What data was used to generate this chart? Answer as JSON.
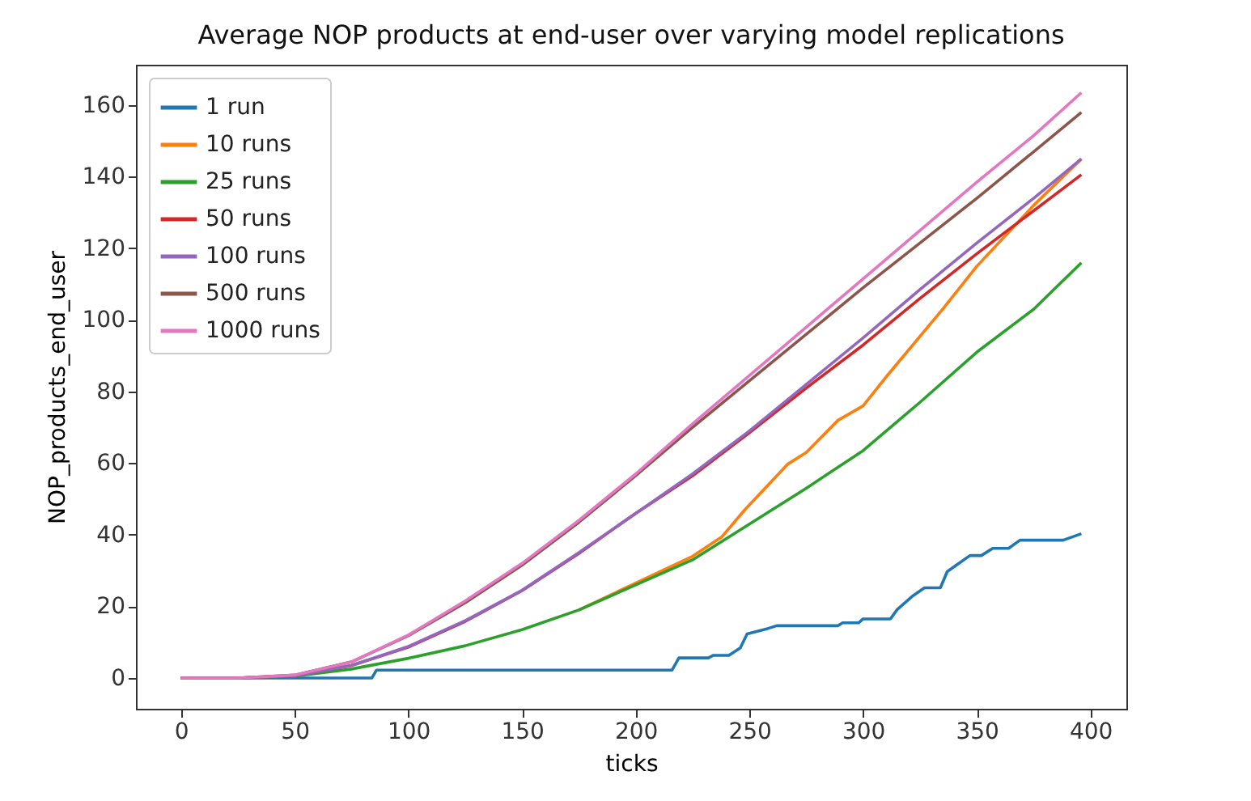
{
  "chart_data": {
    "type": "line",
    "title": "Average NOP products at end-user over varying model replications",
    "xlabel": "ticks",
    "ylabel": "NOP_products_end_user",
    "xlim": [
      -19.8,
      415.8
    ],
    "ylim": [
      -8.6,
      171.3
    ],
    "xticks": [
      0,
      50,
      100,
      150,
      200,
      250,
      300,
      350,
      400
    ],
    "yticks": [
      0,
      20,
      40,
      60,
      80,
      100,
      120,
      140,
      160
    ],
    "grid": false,
    "legend": "top left",
    "line_style": "solid",
    "marker": "none",
    "series": [
      {
        "name": "1 run",
        "color": "#1f77b4",
        "x": [
          0,
          84,
          86,
          216,
          219,
          232,
          234,
          241,
          246,
          249,
          258,
          262,
          289,
          291,
          298,
          300,
          312,
          315,
          322,
          327,
          334,
          337,
          341,
          347,
          352,
          357,
          364,
          369,
          388,
          396
        ],
        "values": [
          0,
          0,
          2.2,
          2.2,
          5.6,
          5.6,
          6.3,
          6.3,
          8.4,
          12.3,
          13.8,
          14.6,
          14.6,
          15.4,
          15.4,
          16.5,
          16.5,
          19.1,
          23,
          25.2,
          25.2,
          29.7,
          31.5,
          34.2,
          34.2,
          36.2,
          36.2,
          38.5,
          38.5,
          40.3
        ]
      },
      {
        "name": "10 runs",
        "color": "#ff7f0e",
        "x": [
          175,
          200,
          225,
          238,
          248,
          267,
          275,
          289,
          300,
          310,
          335,
          350,
          375,
          396
        ],
        "values": [
          19,
          26.5,
          34,
          39.5,
          47,
          59.8,
          63,
          72,
          76,
          84,
          103,
          115,
          132,
          145
        ]
      },
      {
        "name": "25 runs",
        "color": "#2ca02c",
        "x": [
          0,
          25,
          50,
          75,
          100,
          125,
          150,
          175,
          200,
          225,
          250,
          275,
          300,
          325,
          350,
          375,
          396
        ],
        "values": [
          0,
          0,
          0.5,
          2.5,
          5.5,
          9,
          13.5,
          19,
          26,
          33,
          43,
          53,
          63.5,
          77,
          91,
          103,
          116
        ]
      },
      {
        "name": "50 runs",
        "color": "#d62728",
        "x": [
          0,
          25,
          50,
          75,
          100,
          125,
          150,
          175,
          200,
          225,
          250,
          275,
          300,
          325,
          350,
          375,
          396
        ],
        "values": [
          0,
          0,
          0.6,
          3.5,
          8.6,
          15.8,
          24.4,
          34.8,
          46,
          56.5,
          68.5,
          81,
          93,
          106,
          118.5,
          130.5,
          140.6
        ]
      },
      {
        "name": "100 runs",
        "color": "#9467bd",
        "x": [
          0,
          25,
          50,
          75,
          100,
          125,
          150,
          175,
          200,
          225,
          250,
          275,
          300,
          325,
          350,
          375,
          396
        ],
        "values": [
          0,
          0,
          0.6,
          3.5,
          8.8,
          16,
          24.5,
          35,
          46,
          57,
          69,
          82,
          95,
          108.5,
          121.5,
          134,
          145
        ]
      },
      {
        "name": "500 runs",
        "color": "#8c564b",
        "x": [
          0,
          25,
          50,
          75,
          100,
          125,
          150,
          175,
          200,
          225,
          250,
          275,
          300,
          325,
          350,
          375,
          396
        ],
        "values": [
          0,
          0,
          0.8,
          4.5,
          11.8,
          21,
          31.5,
          43.5,
          56.5,
          70,
          83,
          96,
          109,
          121.5,
          134,
          147,
          158
        ]
      },
      {
        "name": "1000 runs",
        "color": "#e377c2",
        "x": [
          0,
          25,
          50,
          75,
          100,
          125,
          150,
          175,
          200,
          225,
          250,
          275,
          300,
          325,
          350,
          375,
          396
        ],
        "values": [
          0,
          0,
          0.8,
          4.5,
          12,
          21.5,
          32,
          44,
          57,
          71,
          84.5,
          98,
          111.5,
          125,
          138.5,
          151.5,
          163.5
        ]
      }
    ]
  }
}
